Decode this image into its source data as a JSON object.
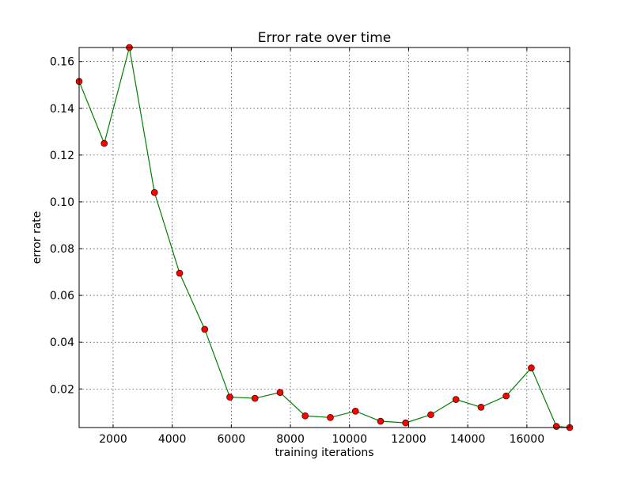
{
  "chart_data": {
    "type": "line",
    "title": "Error rate over time",
    "xlabel": "training iterations",
    "ylabel": "error rate",
    "xlim": [
      850,
      17450
    ],
    "ylim": [
      0.0035,
      0.166
    ],
    "xticks": [
      2000,
      4000,
      6000,
      8000,
      10000,
      12000,
      14000,
      16000
    ],
    "xtick_labels": [
      "2000",
      "4000",
      "6000",
      "8000",
      "10000",
      "12000",
      "14000",
      "16000"
    ],
    "yticks": [
      0.02,
      0.04,
      0.06,
      0.08,
      0.1,
      0.12,
      0.14,
      0.16
    ],
    "ytick_labels": [
      "0.02",
      "0.04",
      "0.06",
      "0.08",
      "0.10",
      "0.12",
      "0.14",
      "0.16"
    ],
    "grid": true,
    "line_color": "#007f00",
    "marker_color": "#ff0000",
    "series": [
      {
        "x": [
          850,
          1700,
          2550,
          3400,
          4250,
          5100,
          5950,
          6800,
          7650,
          8500,
          9350,
          10200,
          11050,
          11900,
          12750,
          13600,
          14450,
          15300,
          16150,
          17000,
          17450
        ],
        "y": [
          0.1515,
          0.125,
          0.166,
          0.104,
          0.0695,
          0.0455,
          0.0165,
          0.016,
          0.0185,
          0.0085,
          0.0078,
          0.0105,
          0.0062,
          0.0055,
          0.009,
          0.0155,
          0.0122,
          0.017,
          0.029,
          0.004,
          0.0035
        ]
      }
    ]
  }
}
